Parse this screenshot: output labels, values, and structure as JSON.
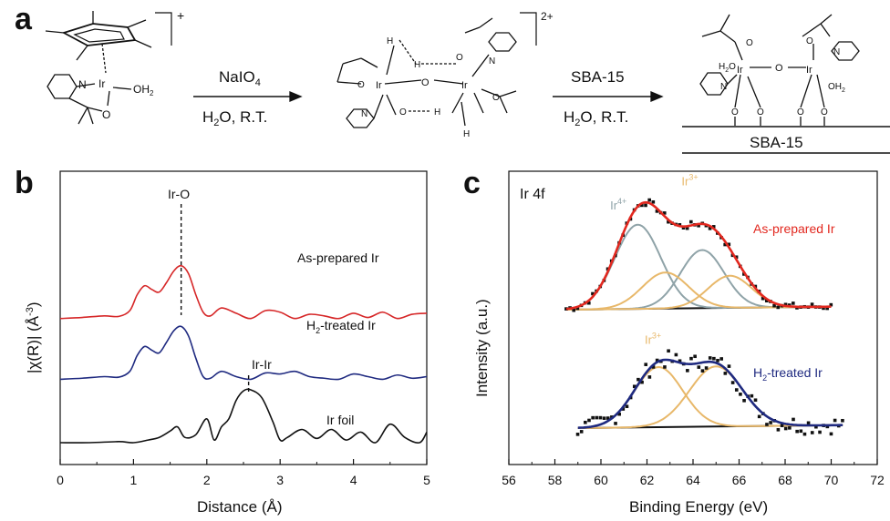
{
  "panels": {
    "a": "a",
    "b": "b",
    "c": "c"
  },
  "scheme": {
    "step1": {
      "reagent": "NaIO",
      "reagent_sub": "4",
      "cond_pre": "H",
      "cond_sub": "2",
      "cond_post": "O, R.T."
    },
    "step2": {
      "reagent": "SBA-15",
      "cond_pre": "H",
      "cond_sub": "2",
      "cond_post": "O, R.T."
    },
    "charge1": "+",
    "charge2": "2+",
    "support_label": "SBA-15",
    "atoms": {
      "ir": "Ir",
      "n": "N",
      "o": "O",
      "oh2": "OH",
      "oh2_sub": "2",
      "h2o": "H",
      "h2o_sub": "2",
      "h2o_post": "O",
      "h": "H"
    }
  },
  "chart_data": [
    {
      "type": "line",
      "id": "b",
      "xlabel": "Distance (Å)",
      "ylabel": "|χ(R)| (Å",
      "ylabel_sup": "-3",
      "ylabel_close": ")",
      "xlim": [
        0,
        5
      ],
      "xticks": [
        "0",
        "1",
        "2",
        "3",
        "4",
        "5"
      ],
      "series": [
        {
          "name": "As-prepared Ir",
          "color": "#d62728",
          "offset": 2.35,
          "x": [
            0.0,
            0.3,
            0.6,
            0.8,
            0.95,
            1.05,
            1.15,
            1.25,
            1.35,
            1.45,
            1.55,
            1.65,
            1.75,
            1.85,
            1.95,
            2.05,
            2.2,
            2.4,
            2.6,
            2.8,
            3.0,
            3.2,
            3.4,
            3.6,
            3.8,
            4.0,
            4.2,
            4.4,
            4.6,
            4.8,
            5.0
          ],
          "y": [
            0.0,
            0.02,
            0.05,
            0.04,
            0.15,
            0.45,
            0.62,
            0.55,
            0.5,
            0.68,
            0.9,
            1.0,
            0.85,
            0.45,
            0.12,
            0.05,
            0.2,
            0.1,
            0.0,
            0.15,
            0.12,
            0.0,
            0.08,
            0.05,
            0.0,
            0.1,
            0.02,
            0.12,
            0.0,
            0.08,
            0.1
          ]
        },
        {
          "name": "H₂-treated Ir",
          "label_pre": "H",
          "label_sub": "2",
          "label_post": "-treated Ir",
          "color": "#1f2a80",
          "offset": 1.2,
          "x": [
            0.0,
            0.3,
            0.6,
            0.8,
            0.95,
            1.05,
            1.15,
            1.25,
            1.35,
            1.45,
            1.55,
            1.65,
            1.75,
            1.85,
            1.95,
            2.05,
            2.2,
            2.4,
            2.6,
            2.8,
            3.0,
            3.2,
            3.4,
            3.6,
            3.8,
            4.0,
            4.2,
            4.4,
            4.6,
            4.8,
            5.0
          ],
          "y": [
            0.0,
            0.02,
            0.05,
            0.04,
            0.15,
            0.45,
            0.62,
            0.55,
            0.5,
            0.7,
            0.92,
            1.0,
            0.82,
            0.4,
            0.05,
            0.02,
            0.15,
            0.05,
            0.0,
            0.12,
            0.1,
            0.15,
            0.05,
            0.02,
            0.0,
            0.1,
            0.05,
            0.0,
            0.08,
            0.02,
            0.05
          ]
        },
        {
          "name": "Ir foil",
          "color": "#111111",
          "offset": 0.0,
          "x": [
            0.0,
            0.4,
            0.8,
            1.0,
            1.2,
            1.35,
            1.5,
            1.6,
            1.7,
            1.85,
            2.0,
            2.1,
            2.2,
            2.3,
            2.4,
            2.5,
            2.6,
            2.75,
            2.9,
            3.0,
            3.1,
            3.3,
            3.5,
            3.7,
            3.9,
            4.1,
            4.3,
            4.5,
            4.7,
            4.9,
            5.0
          ],
          "y": [
            0.0,
            0.0,
            0.02,
            0.0,
            0.05,
            0.1,
            0.22,
            0.3,
            0.1,
            0.15,
            0.45,
            0.05,
            0.3,
            0.45,
            0.8,
            0.98,
            1.0,
            0.85,
            0.4,
            0.05,
            0.1,
            0.25,
            0.08,
            0.25,
            0.05,
            0.2,
            0.0,
            0.35,
            0.1,
            0.0,
            0.2
          ]
        }
      ],
      "annotations": [
        {
          "text": "Ir-O",
          "x": 1.65
        },
        {
          "text": "Ir-Ir",
          "x": 2.57
        }
      ]
    },
    {
      "type": "line",
      "id": "c",
      "title": "Ir 4f",
      "xlabel": "Binding Energy (eV)",
      "ylabel": "Intensity (a.u.)",
      "xlim": [
        56,
        72
      ],
      "xticks": [
        "56",
        "58",
        "60",
        "62",
        "64",
        "66",
        "68",
        "70",
        "72"
      ],
      "spectra": [
        {
          "name": "As-prepared Ir",
          "color": "#e2281f",
          "range": [
            58.5,
            70
          ],
          "offset": 1.0,
          "baseline_end": 0.015,
          "components": [
            {
              "label": "Ir",
              "label_sup": "4+",
              "color": "#8fa3a8",
              "center": 61.6,
              "amp": 0.42,
              "sigma": 1.0
            },
            {
              "label": "Ir",
              "label_sup": "4+",
              "color": "#8fa3a8",
              "center": 64.4,
              "amp": 0.29,
              "sigma": 0.95
            },
            {
              "label": "Ir",
              "label_sup": "3+",
              "color": "#e8b86a",
              "center": 62.8,
              "amp": 0.18,
              "sigma": 1.0
            },
            {
              "label": "Ir",
              "label_sup": "3+",
              "color": "#e8b86a",
              "center": 65.6,
              "amp": 0.16,
              "sigma": 0.95
            }
          ]
        },
        {
          "name": "H₂-treated Ir",
          "label_pre": "H",
          "label_sub": "2",
          "label_post": "-treated Ir",
          "color": "#1f2a80",
          "range": [
            59,
            70.5
          ],
          "offset": 0.0,
          "baseline_end": 0.015,
          "components": [
            {
              "label": "Ir",
              "label_sup": "3+",
              "color": "#e8b86a",
              "center": 62.5,
              "amp": 0.3,
              "sigma": 1.05
            },
            {
              "label": "Ir",
              "label_sup": "3+",
              "color": "#e8b86a",
              "center": 65.0,
              "amp": 0.3,
              "sigma": 1.15
            }
          ]
        }
      ],
      "component_labels": [
        {
          "text": "Ir",
          "sup": "4+",
          "color": "#8fa3a8",
          "spectrum": 0,
          "x": 60.4,
          "dy": 0.5
        },
        {
          "text": "Ir",
          "sup": "3+",
          "color": "#e8b86a",
          "spectrum": 0,
          "x": 63.5,
          "dy": 0.62
        },
        {
          "text": "Ir",
          "sup": "3+",
          "color": "#e8b86a",
          "spectrum": 1,
          "x": 61.9,
          "dy": 0.42
        }
      ]
    }
  ]
}
